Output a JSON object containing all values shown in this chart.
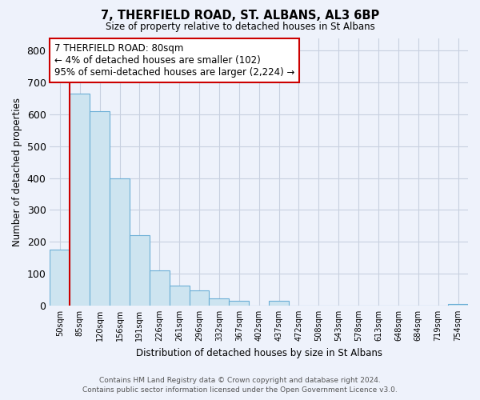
{
  "title": "7, THERFIELD ROAD, ST. ALBANS, AL3 6BP",
  "subtitle": "Size of property relative to detached houses in St Albans",
  "xlabel": "Distribution of detached houses by size in St Albans",
  "ylabel": "Number of detached properties",
  "bar_labels": [
    "50sqm",
    "85sqm",
    "120sqm",
    "156sqm",
    "191sqm",
    "226sqm",
    "261sqm",
    "296sqm",
    "332sqm",
    "367sqm",
    "402sqm",
    "437sqm",
    "472sqm",
    "508sqm",
    "543sqm",
    "578sqm",
    "613sqm",
    "648sqm",
    "684sqm",
    "719sqm",
    "754sqm"
  ],
  "bar_values": [
    175,
    665,
    610,
    400,
    220,
    110,
    62,
    47,
    22,
    15,
    0,
    15,
    0,
    0,
    0,
    0,
    0,
    0,
    0,
    0,
    5
  ],
  "bar_color": "#cde4f0",
  "bar_edge_color": "#6baed6",
  "grid_color": "#c8d0e0",
  "background_color": "#eef2fb",
  "ylim": [
    0,
    840
  ],
  "yticks": [
    0,
    100,
    200,
    300,
    400,
    500,
    600,
    700,
    800
  ],
  "annotation_line1": "7 THERFIELD ROAD: 80sqm",
  "annotation_line2": "← 4% of detached houses are smaller (102)",
  "annotation_line3": "95% of semi-detached houses are larger (2,224) →",
  "annotation_box_color": "#ffffff",
  "annotation_box_edge_color": "#cc0000",
  "property_line_color": "#cc0000",
  "footer_line1": "Contains HM Land Registry data © Crown copyright and database right 2024.",
  "footer_line2": "Contains public sector information licensed under the Open Government Licence v3.0."
}
